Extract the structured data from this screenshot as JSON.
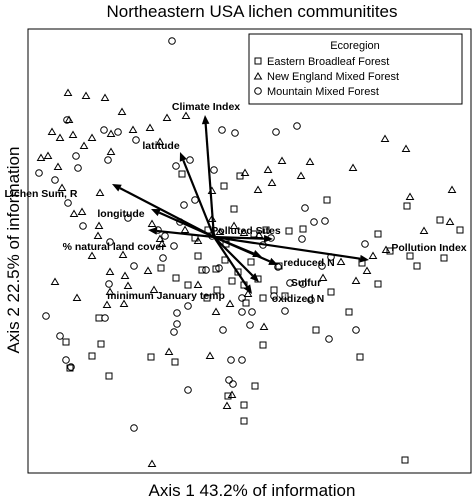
{
  "chart_data": {
    "type": "scatter",
    "title": "Northeastern USA lichen communitites",
    "xlabel": "Axis 1    43.2% of information",
    "ylabel": "Axis 2    22.5% of information",
    "grid": false,
    "legend": {
      "title": "Ecoregion",
      "placement": "top-right",
      "entries": [
        "Eastern Broadleaf Forest",
        "New England Mixed Forest",
        "Mountain Mixed Forest"
      ]
    },
    "series": [
      {
        "name": "Eastern Broadleaf Forest",
        "marker": "square",
        "points": [
          [
            182,
            174
          ],
          [
            240,
            176
          ],
          [
            224,
            186
          ],
          [
            327,
            200
          ],
          [
            407,
            206
          ],
          [
            440,
            220
          ],
          [
            378,
            234
          ],
          [
            390,
            251
          ],
          [
            444,
            258
          ],
          [
            417,
            266
          ],
          [
            460,
            230
          ],
          [
            208,
            230
          ],
          [
            226,
            244
          ],
          [
            254,
            234
          ],
          [
            266,
            230
          ],
          [
            289,
            231
          ],
          [
            216,
            269
          ],
          [
            225,
            260
          ],
          [
            238,
            272
          ],
          [
            232,
            281
          ],
          [
            244,
            285
          ],
          [
            258,
            279
          ],
          [
            274,
            290
          ],
          [
            263,
            298
          ],
          [
            285,
            296
          ],
          [
            246,
            303
          ],
          [
            188,
            285
          ],
          [
            176,
            278
          ],
          [
            202,
            270
          ],
          [
            207,
            298
          ],
          [
            217,
            290
          ],
          [
            161,
            268
          ],
          [
            198,
            256
          ],
          [
            234,
            209
          ],
          [
            303,
            229
          ],
          [
            195,
            238
          ],
          [
            99,
            318
          ],
          [
            101,
            344
          ],
          [
            92,
            356
          ],
          [
            151,
            357
          ],
          [
            175,
            362
          ],
          [
            66,
            342
          ],
          [
            109,
            376
          ],
          [
            70,
            368
          ],
          [
            228,
            396
          ],
          [
            244,
            405
          ],
          [
            244,
            421
          ],
          [
            255,
            386
          ],
          [
            405,
            460
          ],
          [
            360,
            357
          ],
          [
            316,
            330
          ],
          [
            349,
            312
          ],
          [
            331,
            292
          ],
          [
            378,
            284
          ],
          [
            410,
            256
          ],
          [
            362,
            263
          ],
          [
            251,
            262
          ],
          [
            279,
            266
          ],
          [
            263,
            345
          ]
        ]
      },
      {
        "name": "New England Mixed Forest",
        "marker": "triangle",
        "points": [
          [
            68,
            93
          ],
          [
            86,
            96
          ],
          [
            105,
            98
          ],
          [
            122,
            112
          ],
          [
            69,
            120
          ],
          [
            52,
            132
          ],
          [
            60,
            138
          ],
          [
            73,
            135
          ],
          [
            92,
            138
          ],
          [
            111,
            134
          ],
          [
            84,
            146
          ],
          [
            133,
            130
          ],
          [
            150,
            128
          ],
          [
            160,
            142
          ],
          [
            167,
            118
          ],
          [
            186,
            116
          ],
          [
            111,
            152
          ],
          [
            41,
            158
          ],
          [
            48,
            156
          ],
          [
            58,
            167
          ],
          [
            62,
            188
          ],
          [
            74,
            214
          ],
          [
            82,
            212
          ],
          [
            100,
            193
          ],
          [
            99,
            226
          ],
          [
            98,
            236
          ],
          [
            123,
            255
          ],
          [
            92,
            256
          ],
          [
            110,
            272
          ],
          [
            148,
            271
          ],
          [
            160,
            239
          ],
          [
            162,
            244
          ],
          [
            125,
            276
          ],
          [
            128,
            286
          ],
          [
            107,
            305
          ],
          [
            77,
            298
          ],
          [
            55,
            282
          ],
          [
            110,
            292
          ],
          [
            124,
            304
          ],
          [
            154,
            290
          ],
          [
            198,
            285
          ],
          [
            216,
            312
          ],
          [
            230,
            304
          ],
          [
            264,
            327
          ],
          [
            323,
            278
          ],
          [
            356,
            281
          ],
          [
            367,
            271
          ],
          [
            341,
            262
          ],
          [
            373,
            256
          ],
          [
            386,
            250
          ],
          [
            424,
            231
          ],
          [
            450,
            222
          ],
          [
            410,
            197
          ],
          [
            452,
            190
          ],
          [
            480,
            190
          ],
          [
            385,
            139
          ],
          [
            406,
            149
          ],
          [
            353,
            168
          ],
          [
            310,
            162
          ],
          [
            301,
            176
          ],
          [
            282,
            161
          ],
          [
            268,
            170
          ],
          [
            272,
            183
          ],
          [
            258,
            190
          ],
          [
            245,
            173
          ],
          [
            212,
            191
          ],
          [
            212,
            219
          ],
          [
            234,
            226
          ],
          [
            220,
            232
          ],
          [
            248,
            294
          ],
          [
            244,
            233
          ],
          [
            152,
            464
          ],
          [
            232,
            395
          ],
          [
            227,
            406
          ],
          [
            169,
            352
          ],
          [
            210,
            356
          ],
          [
            259,
            235
          ],
          [
            185,
            230
          ],
          [
            198,
            241
          ],
          [
            152,
            224
          ]
        ]
      },
      {
        "name": "Mountain Mixed Forest",
        "marker": "circle",
        "points": [
          [
            172,
            41
          ],
          [
            67,
            120
          ],
          [
            104,
            130
          ],
          [
            118,
            132
          ],
          [
            136,
            140
          ],
          [
            108,
            160
          ],
          [
            78,
            168
          ],
          [
            39,
            173
          ],
          [
            55,
            180
          ],
          [
            76,
            156
          ],
          [
            176,
            166
          ],
          [
            190,
            160
          ],
          [
            214,
            170
          ],
          [
            184,
            205
          ],
          [
            174,
            246
          ],
          [
            158,
            230
          ],
          [
            165,
            236
          ],
          [
            128,
            218
          ],
          [
            83,
            226
          ],
          [
            68,
            203
          ],
          [
            163,
            258
          ],
          [
            180,
            222
          ],
          [
            134,
            266
          ],
          [
            109,
            284
          ],
          [
            110,
            242
          ],
          [
            105,
            318
          ],
          [
            46,
            316
          ],
          [
            60,
            336
          ],
          [
            66,
            360
          ],
          [
            71,
            367
          ],
          [
            177,
            313
          ],
          [
            174,
            332
          ],
          [
            188,
            306
          ],
          [
            223,
            330
          ],
          [
            252,
            312
          ],
          [
            242,
            298
          ],
          [
            206,
            270
          ],
          [
            242,
            312
          ],
          [
            195,
            200
          ],
          [
            278,
            267
          ],
          [
            263,
            245
          ],
          [
            271,
            238
          ],
          [
            305,
            208
          ],
          [
            314,
            222
          ],
          [
            325,
            221
          ],
          [
            365,
            244
          ],
          [
            331,
            257
          ],
          [
            290,
            283
          ],
          [
            274,
            296
          ],
          [
            285,
            311
          ],
          [
            303,
            284
          ],
          [
            311,
            300
          ],
          [
            356,
            330
          ],
          [
            329,
            339
          ],
          [
            322,
            266
          ],
          [
            302,
            239
          ],
          [
            212,
            236
          ],
          [
            219,
            268
          ],
          [
            250,
            325
          ],
          [
            242,
            360
          ],
          [
            229,
            380
          ],
          [
            233,
            384
          ],
          [
            188,
            390
          ],
          [
            177,
            324
          ],
          [
            134,
            428
          ],
          [
            231,
            360
          ],
          [
            420,
            102
          ],
          [
            297,
            126
          ],
          [
            276,
            132
          ],
          [
            222,
            130
          ],
          [
            235,
            133
          ]
        ]
      }
    ],
    "vectors": [
      {
        "label": "Climate Index",
        "dx": -9,
        "dy": 122
      },
      {
        "label": "latitude",
        "dx": -34,
        "dy": 85
      },
      {
        "label": "Lichen Sum, R",
        "dx": -102,
        "dy": 53
      },
      {
        "label": "longitude",
        "dx": -63,
        "dy": 28
      },
      {
        "label": "% natural land cover",
        "dx": -66,
        "dy": 7
      },
      {
        "label": "Polluted Sites",
        "dx": 59,
        "dy": -2
      },
      {
        "label": "Pollution Index",
        "dx": 155,
        "dy": -23
      },
      {
        "label": "reduced N",
        "dx": 48,
        "dy": -20
      },
      {
        "label": "Sulfur",
        "dx": 64,
        "dy": -28
      },
      {
        "label": "oxidized N",
        "dx": 45,
        "dy": -45
      },
      {
        "label": "minimum January temp",
        "dx": 38,
        "dy": -57
      }
    ]
  }
}
